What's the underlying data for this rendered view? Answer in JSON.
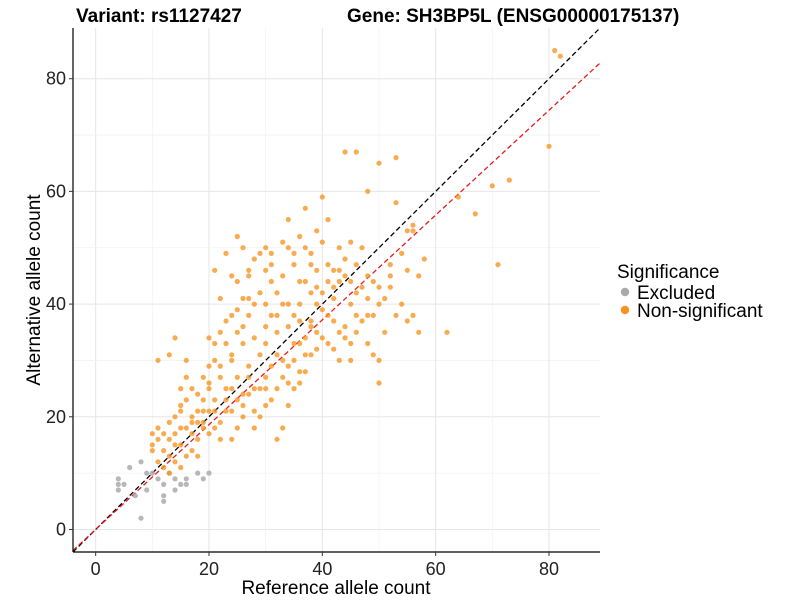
{
  "chart_data": {
    "type": "scatter",
    "title_left": "Variant: rs1127427",
    "title_right": "Gene: SH3BP5L (ENSG00000175137)",
    "xlabel": "Reference allele count",
    "ylabel": "Alternative allele count",
    "xlim": [
      -4,
      89
    ],
    "ylim": [
      -4,
      89
    ],
    "xticks": [
      0,
      20,
      40,
      60,
      80
    ],
    "yticks": [
      0,
      20,
      40,
      60,
      80
    ],
    "grid": true,
    "legend": {
      "title": "Significance",
      "placement": "right",
      "entries": [
        {
          "label": "Excluded",
          "color": "#aaaaaa"
        },
        {
          "label": "Non-significant",
          "color": "#f7931e"
        }
      ]
    },
    "reference_lines": [
      {
        "style": "dashed",
        "color": "#000000",
        "intercept": 0,
        "slope": 1
      },
      {
        "style": "dashed",
        "color": "#e8191e",
        "intercept": 0,
        "slope": 0.93
      }
    ],
    "series": [
      {
        "name": "Excluded",
        "color": "#aaaaaa",
        "points": [
          [
            4,
            9
          ],
          [
            4,
            8
          ],
          [
            5,
            8
          ],
          [
            4,
            7
          ],
          [
            6,
            11
          ],
          [
            8,
            12
          ],
          [
            9,
            10
          ],
          [
            10,
            10
          ],
          [
            8,
            2
          ],
          [
            12,
            6
          ],
          [
            12,
            5
          ],
          [
            12,
            8
          ],
          [
            14,
            7
          ],
          [
            14,
            9
          ],
          [
            15,
            8
          ],
          [
            16,
            8
          ],
          [
            16,
            9
          ],
          [
            19,
            9
          ],
          [
            20,
            10
          ],
          [
            18,
            10
          ],
          [
            11,
            9
          ],
          [
            13,
            10
          ],
          [
            9,
            7
          ],
          [
            7,
            6
          ]
        ]
      },
      {
        "name": "Non-significant",
        "color": "#f7931e",
        "points": [
          [
            81,
            85
          ],
          [
            82,
            84
          ],
          [
            80,
            68
          ],
          [
            73,
            62
          ],
          [
            70,
            61
          ],
          [
            67,
            56
          ],
          [
            71,
            47
          ],
          [
            62,
            35
          ],
          [
            57,
            35
          ],
          [
            44,
            67
          ],
          [
            46,
            67
          ],
          [
            50,
            65
          ],
          [
            53,
            66
          ],
          [
            48,
            60
          ],
          [
            53,
            58
          ],
          [
            40,
            59
          ],
          [
            37,
            57
          ],
          [
            34,
            55
          ],
          [
            25,
            52
          ],
          [
            64,
            59
          ],
          [
            56,
            54
          ],
          [
            55,
            53
          ],
          [
            57,
            45
          ],
          [
            58,
            48
          ],
          [
            52,
            47
          ],
          [
            50,
            40
          ],
          [
            50,
            26
          ],
          [
            50,
            30
          ],
          [
            45,
            33
          ],
          [
            43,
            35
          ],
          [
            48,
            38
          ],
          [
            38,
            47
          ],
          [
            36,
            44
          ],
          [
            41,
            47
          ],
          [
            39,
            43
          ],
          [
            42,
            41
          ],
          [
            35,
            38
          ],
          [
            37,
            34
          ],
          [
            33,
            40
          ],
          [
            32,
            42
          ],
          [
            31,
            44
          ],
          [
            30,
            36
          ],
          [
            28,
            40
          ],
          [
            27,
            38
          ],
          [
            26,
            33
          ],
          [
            24,
            30
          ],
          [
            24,
            25
          ],
          [
            25,
            35
          ],
          [
            22,
            27
          ],
          [
            23,
            37
          ],
          [
            22,
            41
          ],
          [
            21,
            33
          ],
          [
            20,
            29
          ],
          [
            20,
            25
          ],
          [
            19,
            23
          ],
          [
            18,
            21
          ],
          [
            18,
            16
          ],
          [
            17,
            19
          ],
          [
            16,
            23
          ],
          [
            16,
            27
          ],
          [
            15,
            25
          ],
          [
            15,
            21
          ],
          [
            14,
            17
          ],
          [
            14,
            15
          ],
          [
            13,
            13
          ],
          [
            12,
            11
          ],
          [
            11,
            12
          ],
          [
            10,
            17
          ],
          [
            10,
            15
          ],
          [
            13,
            31
          ],
          [
            14,
            34
          ],
          [
            11,
            30
          ],
          [
            16,
            30
          ],
          [
            21,
            46
          ],
          [
            23,
            49
          ],
          [
            24,
            45
          ],
          [
            27,
            45
          ],
          [
            30,
            46
          ],
          [
            31,
            49
          ],
          [
            34,
            50
          ],
          [
            36,
            52
          ],
          [
            38,
            49
          ],
          [
            40,
            51
          ],
          [
            43,
            50
          ],
          [
            44,
            48
          ],
          [
            47,
            50
          ],
          [
            48,
            45
          ],
          [
            46,
            42
          ],
          [
            45,
            40
          ],
          [
            43,
            44
          ],
          [
            41,
            38
          ],
          [
            39,
            35
          ],
          [
            38,
            31
          ],
          [
            36,
            28
          ],
          [
            35,
            25
          ],
          [
            34,
            22
          ],
          [
            33,
            18
          ],
          [
            32,
            16
          ],
          [
            30,
            22
          ],
          [
            29,
            20
          ],
          [
            28,
            18
          ],
          [
            27,
            24
          ],
          [
            26,
            20
          ],
          [
            25,
            18
          ],
          [
            24,
            16
          ],
          [
            23,
            21
          ],
          [
            22,
            19
          ],
          [
            21,
            18
          ],
          [
            20,
            21
          ],
          [
            19,
            18
          ],
          [
            18,
            13
          ],
          [
            17,
            14
          ],
          [
            16,
            13
          ],
          [
            15,
            11
          ],
          [
            14,
            12
          ],
          [
            13,
            10
          ],
          [
            12,
            14
          ],
          [
            11,
            16
          ],
          [
            35,
            33
          ],
          [
            37,
            31
          ],
          [
            39,
            40
          ],
          [
            41,
            44
          ],
          [
            42,
            37
          ],
          [
            44,
            36
          ],
          [
            46,
            35
          ],
          [
            48,
            33
          ],
          [
            49,
            31
          ],
          [
            51,
            35
          ],
          [
            52,
            43
          ],
          [
            54,
            40
          ],
          [
            55,
            46
          ],
          [
            56,
            38
          ],
          [
            33,
            30
          ],
          [
            31,
            29
          ],
          [
            29,
            31
          ],
          [
            27,
            29
          ],
          [
            25,
            27
          ],
          [
            23,
            25
          ],
          [
            21,
            23
          ],
          [
            19,
            21
          ],
          [
            17,
            20
          ],
          [
            15,
            18
          ],
          [
            13,
            16
          ],
          [
            18,
            24
          ],
          [
            20,
            26
          ],
          [
            22,
            29
          ],
          [
            24,
            31
          ],
          [
            26,
            36
          ],
          [
            28,
            34
          ],
          [
            30,
            33
          ],
          [
            32,
            31
          ],
          [
            34,
            29
          ],
          [
            36,
            33
          ],
          [
            38,
            37
          ],
          [
            40,
            39
          ],
          [
            42,
            43
          ],
          [
            44,
            45
          ],
          [
            46,
            47
          ],
          [
            34,
            36
          ],
          [
            32,
            35
          ],
          [
            30,
            27
          ],
          [
            28,
            25
          ],
          [
            26,
            24
          ],
          [
            31,
            38
          ],
          [
            33,
            45
          ],
          [
            35,
            47
          ],
          [
            37,
            44
          ],
          [
            39,
            46
          ],
          [
            29,
            42
          ],
          [
            27,
            41
          ],
          [
            25,
            39
          ],
          [
            23,
            33
          ],
          [
            21,
            30
          ],
          [
            19,
            27
          ],
          [
            17,
            25
          ],
          [
            15,
            22
          ],
          [
            20,
            34
          ],
          [
            22,
            35
          ],
          [
            24,
            38
          ],
          [
            26,
            41
          ],
          [
            36,
            40
          ],
          [
            38,
            42
          ],
          [
            40,
            42
          ],
          [
            42,
            46
          ],
          [
            45,
            44
          ],
          [
            47,
            43
          ],
          [
            49,
            44
          ],
          [
            51,
            41
          ],
          [
            53,
            38
          ],
          [
            55,
            37
          ],
          [
            41,
            33
          ],
          [
            43,
            30
          ],
          [
            45,
            30
          ],
          [
            47,
            37
          ],
          [
            49,
            38
          ],
          [
            33,
            27
          ],
          [
            35,
            30
          ],
          [
            37,
            28
          ],
          [
            39,
            32
          ],
          [
            31,
            23
          ],
          [
            29,
            25
          ],
          [
            27,
            27
          ],
          [
            25,
            23
          ],
          [
            23,
            23
          ],
          [
            21,
            21
          ],
          [
            19,
            19
          ],
          [
            22,
            16
          ],
          [
            24,
            21
          ],
          [
            26,
            22
          ],
          [
            28,
            21
          ],
          [
            30,
            25
          ],
          [
            32,
            25
          ],
          [
            34,
            26
          ],
          [
            36,
            26
          ],
          [
            17,
            17
          ],
          [
            15,
            15
          ],
          [
            13,
            19
          ],
          [
            11,
            18
          ],
          [
            10,
            14
          ],
          [
            12,
            17
          ],
          [
            14,
            20
          ],
          [
            16,
            18
          ],
          [
            18,
            19
          ],
          [
            20,
            17
          ],
          [
            30,
            40
          ],
          [
            32,
            38
          ],
          [
            34,
            40
          ],
          [
            36,
            37
          ],
          [
            38,
            36
          ],
          [
            40,
            34
          ],
          [
            42,
            32
          ],
          [
            44,
            34
          ],
          [
            46,
            38
          ],
          [
            48,
            41
          ],
          [
            50,
            43
          ],
          [
            52,
            45
          ],
          [
            54,
            49
          ],
          [
            56,
            53
          ],
          [
            37,
            50
          ],
          [
            39,
            53
          ],
          [
            41,
            55
          ],
          [
            33,
            51
          ],
          [
            35,
            49
          ],
          [
            31,
            47
          ],
          [
            29,
            49
          ],
          [
            27,
            46
          ],
          [
            25,
            44
          ],
          [
            28,
            48
          ],
          [
            26,
            50
          ],
          [
            30,
            50
          ],
          [
            45,
            51
          ],
          [
            43,
            46
          ]
        ]
      }
    ]
  }
}
